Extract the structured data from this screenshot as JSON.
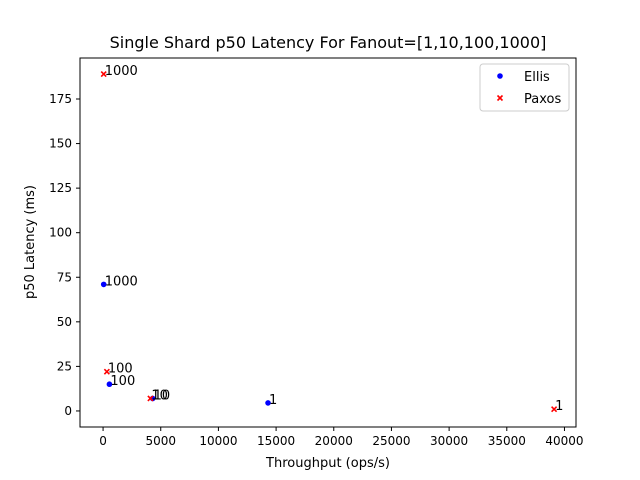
{
  "chart_data": {
    "type": "scatter",
    "title": "Single Shard p50 Latency For Fanout=[1,10,100,1000]",
    "xlabel": "Throughput (ops/s)",
    "ylabel": "p50 Latency (ms)",
    "xlim": [
      -2000,
      41000
    ],
    "ylim": [
      -9,
      198
    ],
    "xticks": [
      0,
      5000,
      10000,
      15000,
      20000,
      25000,
      30000,
      35000,
      40000
    ],
    "yticks": [
      0,
      25,
      50,
      75,
      100,
      125,
      150,
      175
    ],
    "grid": false,
    "legend_position": "top-right",
    "series": [
      {
        "name": "Ellis",
        "marker": "circle",
        "color": "#0000ff",
        "points": [
          {
            "x": 14300,
            "y": 4.5,
            "label": "1"
          },
          {
            "x": 4300,
            "y": 7,
            "label": "10"
          },
          {
            "x": 550,
            "y": 15,
            "label": "100"
          },
          {
            "x": 55,
            "y": 71,
            "label": "1000"
          }
        ]
      },
      {
        "name": "Paxos",
        "marker": "x",
        "color": "#ff0000",
        "points": [
          {
            "x": 39100,
            "y": 1,
            "label": "1"
          },
          {
            "x": 4100,
            "y": 7,
            "label": "10"
          },
          {
            "x": 330,
            "y": 22,
            "label": "100"
          },
          {
            "x": 55,
            "y": 189,
            "label": "1000"
          }
        ]
      }
    ]
  }
}
